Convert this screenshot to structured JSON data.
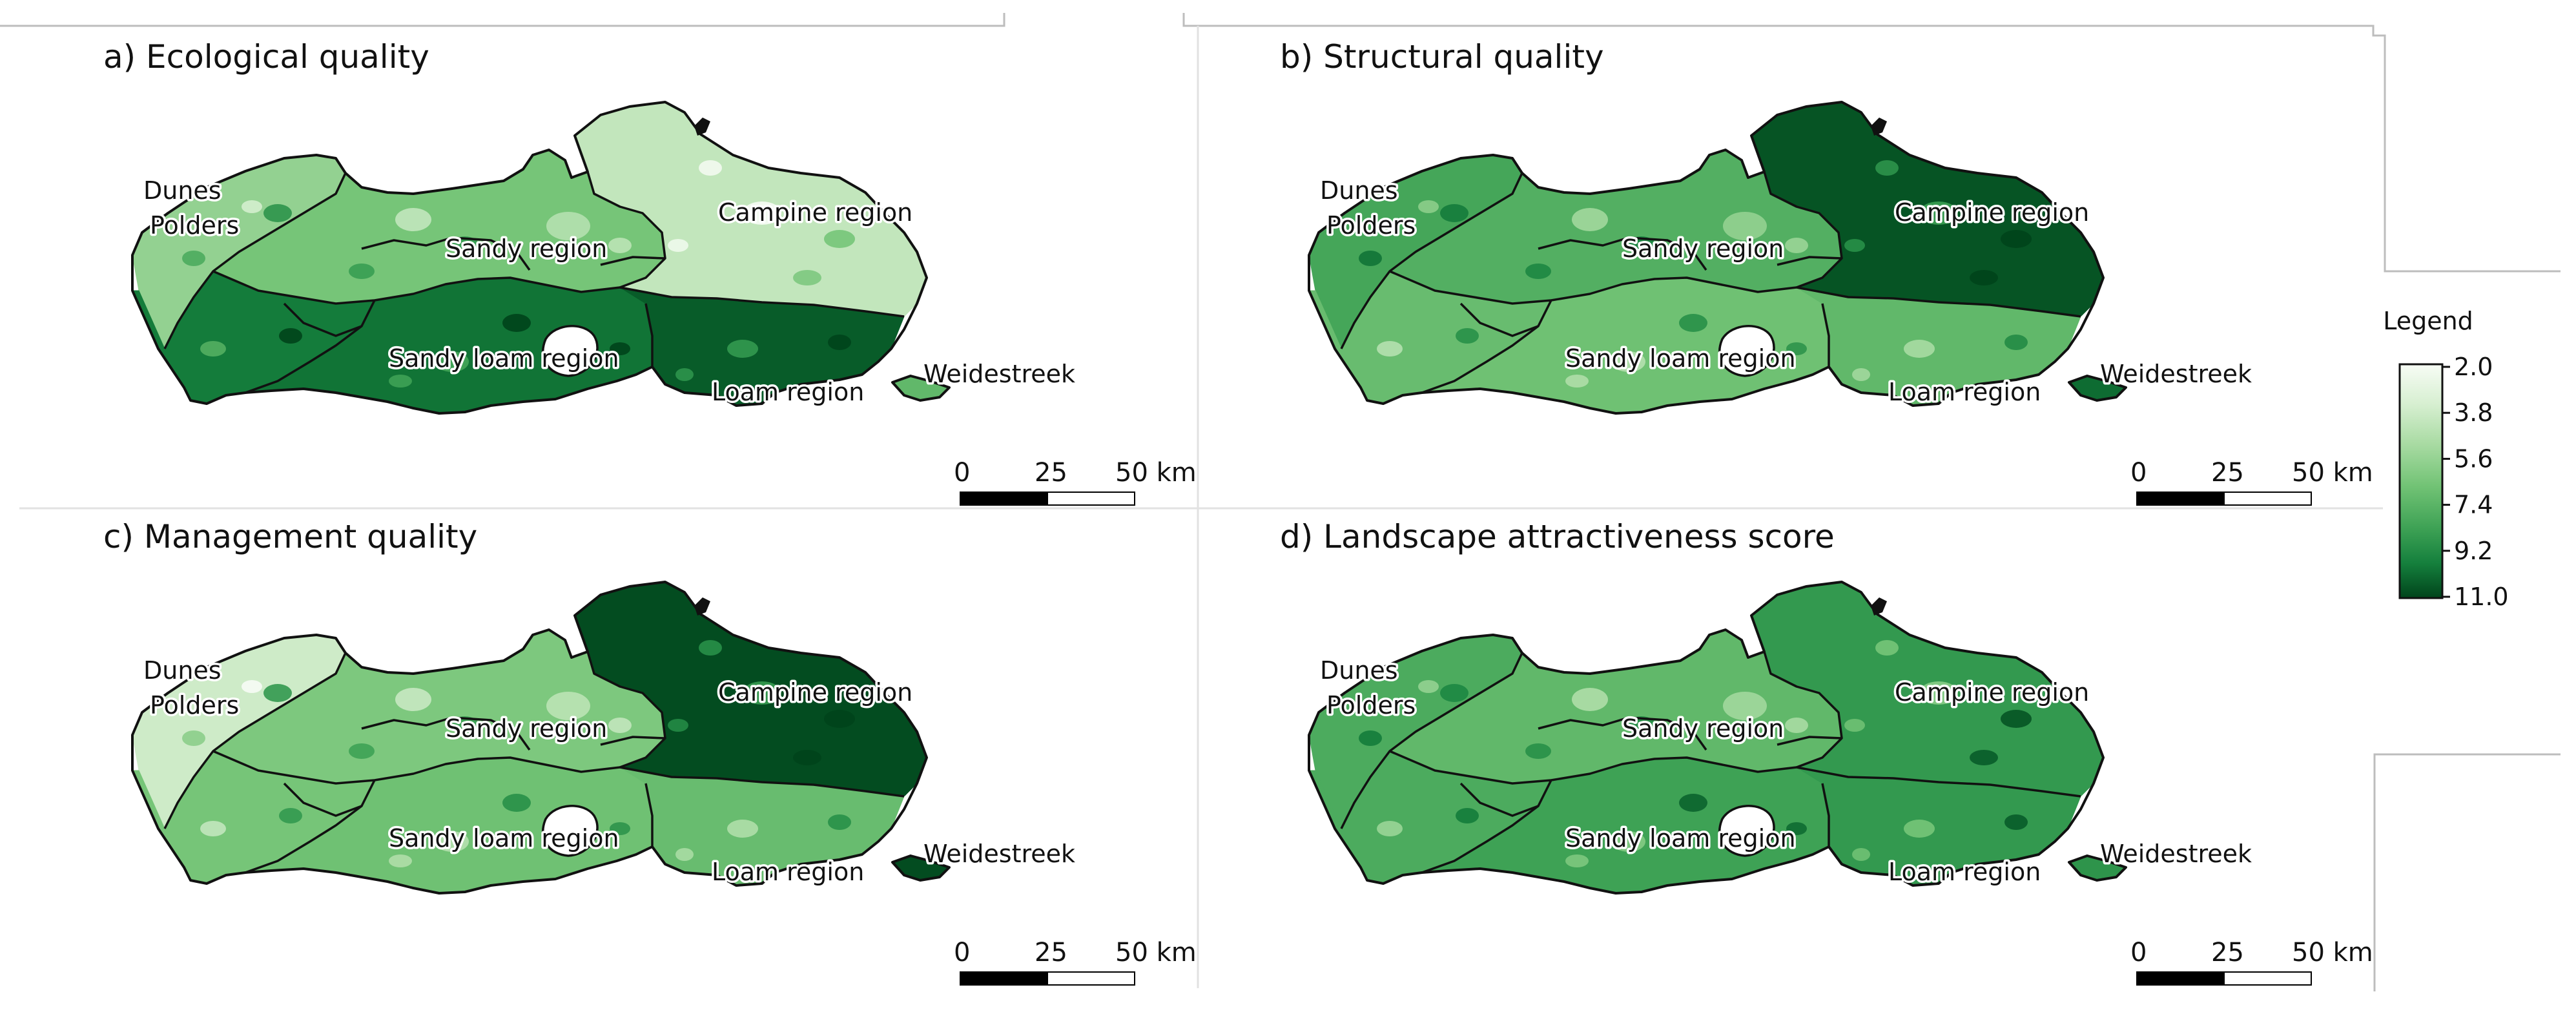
{
  "colors": {
    "scale": [
      "#f7fcf5",
      "#d7efd1",
      "#a9dba3",
      "#72c375",
      "#3ea255",
      "#15803d",
      "#00441b"
    ],
    "outline": "#111111",
    "frame": "#bdbdbd"
  },
  "legend": {
    "title": "Legend",
    "ticks": [
      "2.0",
      "3.8",
      "5.6",
      "7.4",
      "9.2",
      "11.0"
    ],
    "min": 2.0,
    "max": 11.0
  },
  "scalebar": {
    "labels": [
      "0",
      "25",
      "50 km"
    ]
  },
  "region_names": {
    "dunes": "Dunes",
    "polders": "Polders",
    "sandy": "Sandy region",
    "campine": "Campine region",
    "sandy_loam": "Sandy loam region",
    "loam": "Loam region",
    "weidestreek": "Weidestreek"
  },
  "panels": [
    {
      "title": "a) Ecological quality",
      "values": {
        "polders": 5.6,
        "sandy": 6.4,
        "campine": 4.2,
        "west": 9.6,
        "sandy_loam": 9.8,
        "loam": 10.4,
        "weidestreek": 7.0
      }
    },
    {
      "title": "b) Structural quality",
      "values": {
        "polders": 7.8,
        "sandy": 7.4,
        "campine": 10.6,
        "west": 6.8,
        "sandy_loam": 6.6,
        "loam": 7.0,
        "weidestreek": 10.0
      }
    },
    {
      "title": "c) Management quality",
      "values": {
        "polders": 3.8,
        "sandy": 6.2,
        "campine": 10.8,
        "west": 6.4,
        "sandy_loam": 6.6,
        "loam": 6.8,
        "weidestreek": 10.8
      }
    },
    {
      "title": "d) Landscape attractiveness score",
      "values": {
        "polders": 7.6,
        "sandy": 7.0,
        "campine": 8.4,
        "west": 7.6,
        "sandy_loam": 8.0,
        "loam": 8.4,
        "weidestreek": 8.6
      }
    }
  ]
}
